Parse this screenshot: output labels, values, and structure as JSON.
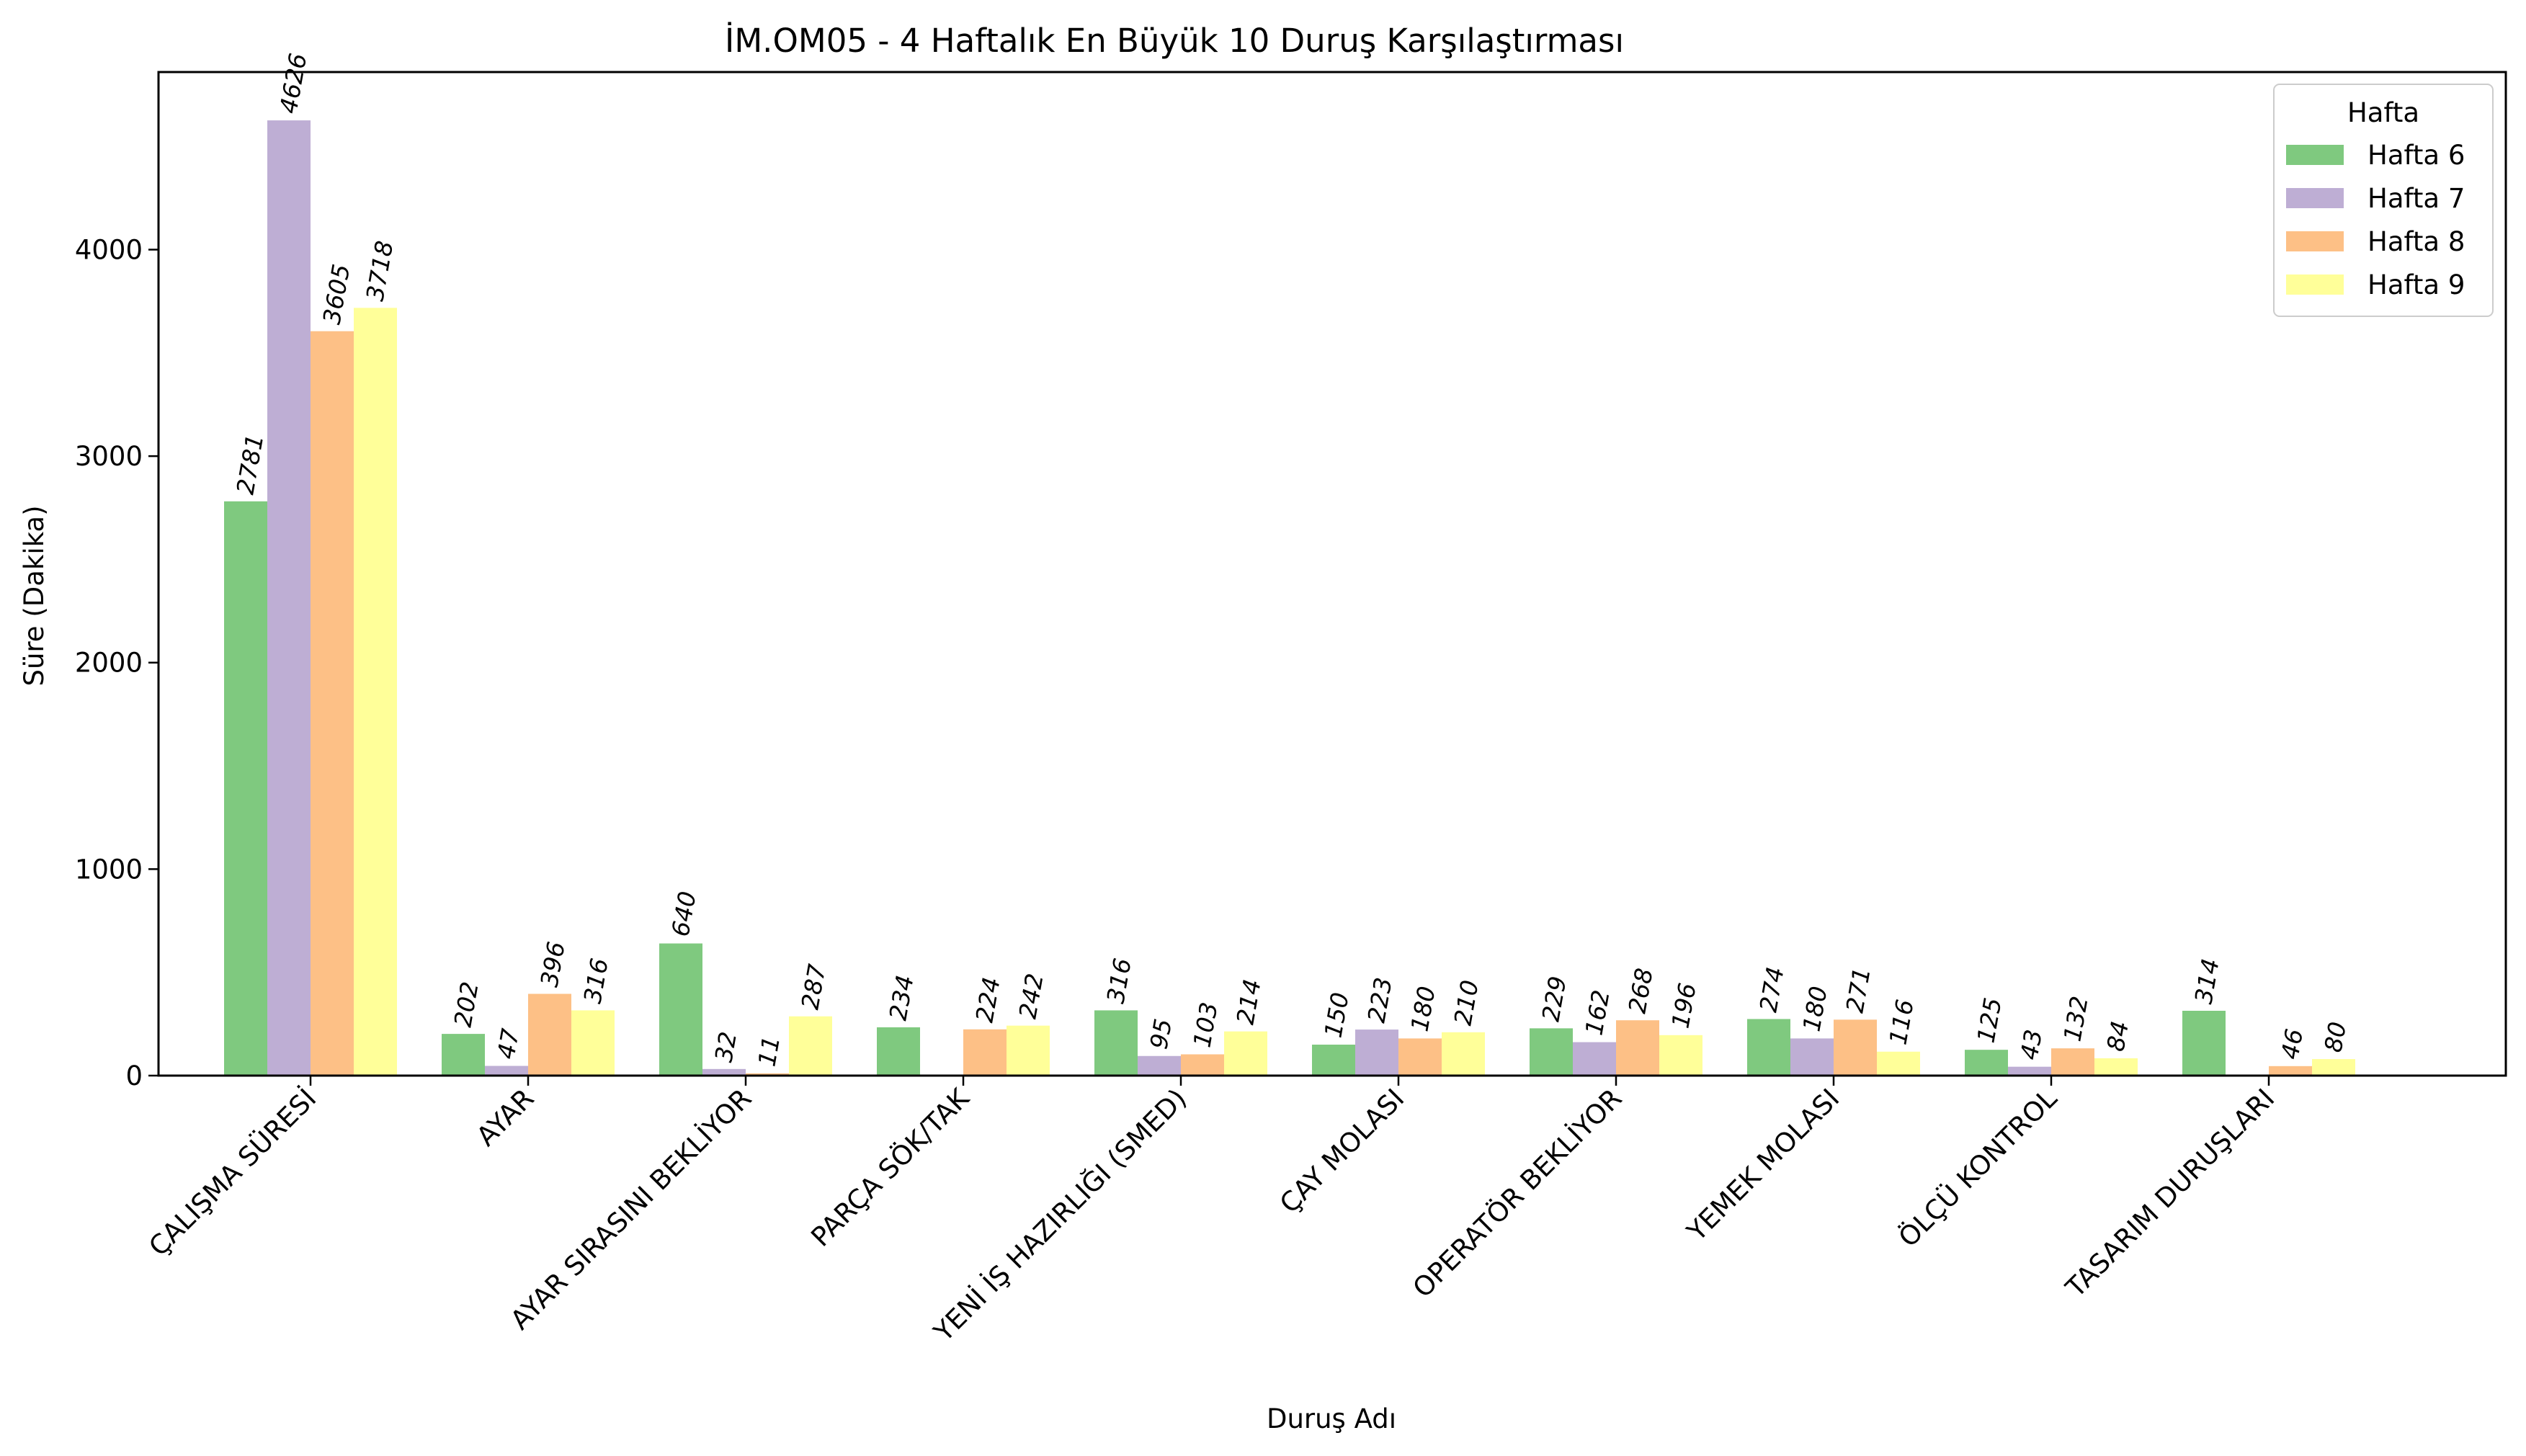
{
  "chart_data": {
    "type": "bar",
    "title": "İM.OM05 - 4 Haftalık En Büyük 10 Duruş Karşılaştırması",
    "xlabel": "Duruş Adı",
    "ylabel": "Süre (Dakika)",
    "ylim": [
      0,
      4860
    ],
    "yticks": [
      0,
      1000,
      2000,
      3000,
      4000
    ],
    "grid": false,
    "legend": {
      "title": "Hafta",
      "position": "top-right"
    },
    "categories": [
      "ÇALIŞMA SÜRESİ",
      "AYAR",
      "AYAR SIRASINI BEKLİYOR",
      "PARÇA SÖK/TAK",
      "YENİ İŞ HAZIRLIĞI (SMED)",
      "ÇAY MOLASI",
      "OPERATÖR BEKLİYOR",
      "YEMEK MOLASI",
      "ÖLÇÜ KONTROL",
      "TASARIM DURUŞLARI"
    ],
    "series": [
      {
        "name": "Hafta 6",
        "color": "#7fc97f",
        "values": [
          2781,
          202,
          640,
          234,
          316,
          150,
          229,
          274,
          125,
          314
        ]
      },
      {
        "name": "Hafta 7",
        "color": "#beaed4",
        "values": [
          4626,
          47,
          32,
          null,
          95,
          223,
          162,
          180,
          43,
          null
        ]
      },
      {
        "name": "Hafta 8",
        "color": "#fdc086",
        "values": [
          3605,
          396,
          11,
          224,
          103,
          180,
          268,
          271,
          132,
          46
        ]
      },
      {
        "name": "Hafta 9",
        "color": "#ffff99",
        "values": [
          3718,
          316,
          287,
          242,
          214,
          210,
          196,
          116,
          84,
          80
        ]
      }
    ]
  }
}
